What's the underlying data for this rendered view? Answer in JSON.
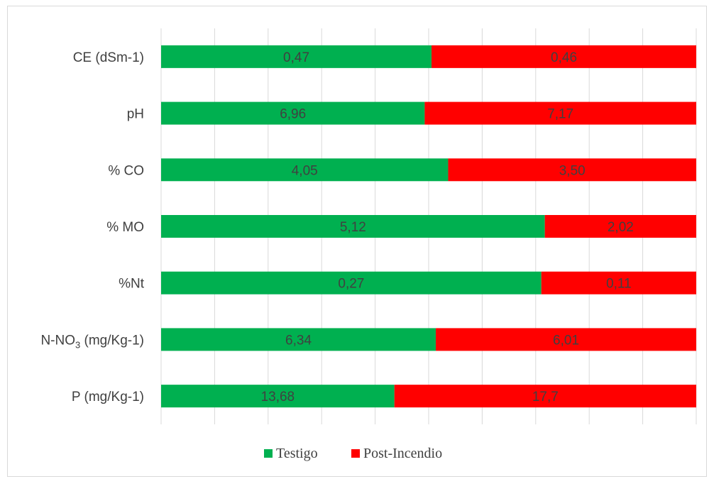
{
  "chart_data": {
    "type": "bar",
    "orientation": "horizontal",
    "stacked": "100%",
    "grid": true,
    "legend_position": "bottom",
    "categories": [
      {
        "label": "CE (dSm-1)"
      },
      {
        "label": "pH"
      },
      {
        "label": "% CO"
      },
      {
        "label": "% MO"
      },
      {
        "label": "%Nt"
      },
      {
        "label_parts": [
          "N-NO",
          "3",
          "  (mg/Kg-1)"
        ]
      },
      {
        "label": "P (mg/Kg-1)"
      }
    ],
    "series": [
      {
        "name": "Testigo",
        "color": "#00b050",
        "values": [
          0.47,
          6.96,
          4.05,
          5.12,
          0.27,
          6.34,
          13.68
        ],
        "labels": [
          "0,47",
          "6,96",
          "4,05",
          "5,12",
          "0,27",
          "6,34",
          "13,68"
        ]
      },
      {
        "name": "Post-Incendio",
        "color": "#ff0000",
        "values": [
          0.46,
          7.17,
          3.5,
          2.02,
          0.11,
          6.01,
          17.7
        ],
        "labels": [
          "0,46",
          "7,17",
          "3,50",
          "2,02",
          "0,11",
          "6,01",
          "17,7"
        ]
      }
    ],
    "gridline_count": 10
  }
}
